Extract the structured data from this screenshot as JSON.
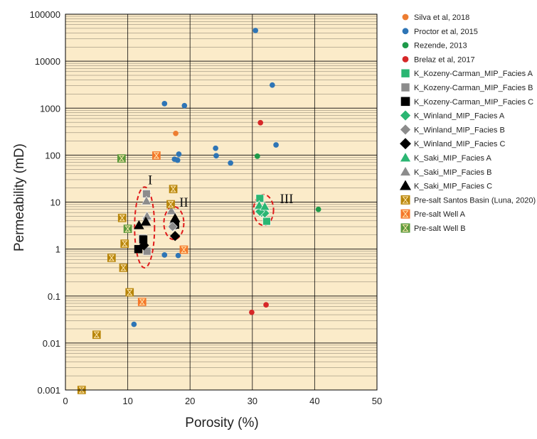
{
  "chart_data": {
    "type": "scatter",
    "xlabel": "Porosity (%)",
    "ylabel": "Permeability (mD)",
    "xlim": [
      0,
      50
    ],
    "ylim": [
      0.001,
      100000
    ],
    "y_scale": "log",
    "x_ticks": [
      "0",
      "10",
      "20",
      "30",
      "40",
      "50"
    ],
    "y_ticks": [
      "0.001",
      "0.01",
      "0.1",
      "1",
      "10",
      "100",
      "1000",
      "10000",
      "100000"
    ],
    "grid": true,
    "plot_background": "#FBEBC9",
    "legend_position": "right",
    "series": [
      {
        "name": "Silva et al, 2018",
        "marker": "circle",
        "color": "#ED7D31",
        "points": [
          [
            17.7,
            290
          ]
        ]
      },
      {
        "name": "Proctor et al, 2015",
        "marker": "circle",
        "color": "#2E75B6",
        "points": [
          [
            30.5,
            45000
          ],
          [
            33.2,
            3100
          ],
          [
            15.9,
            1250
          ],
          [
            19.1,
            1130
          ],
          [
            33.8,
            165
          ],
          [
            24.1,
            140
          ],
          [
            18.2,
            105
          ],
          [
            24.2,
            97
          ],
          [
            17.5,
            82
          ],
          [
            18.0,
            78
          ],
          [
            26.5,
            68
          ],
          [
            15.9,
            0.75
          ],
          [
            18.1,
            0.73
          ],
          [
            11.0,
            0.025
          ]
        ]
      },
      {
        "name": "Rezende, 2013",
        "marker": "circle",
        "color": "#1E9A4A",
        "points": [
          [
            30.8,
            95
          ],
          [
            40.6,
            7
          ]
        ]
      },
      {
        "name": "Brelaz et al, 2017",
        "marker": "circle",
        "color": "#D62728",
        "points": [
          [
            31.3,
            490
          ],
          [
            32.2,
            0.065
          ],
          [
            29.9,
            0.045
          ]
        ]
      },
      {
        "name": "K_Kozeny-Carman_MIP_Facies A",
        "marker": "square",
        "color": "#2BB673",
        "points": [
          [
            31.2,
            12
          ],
          [
            32.3,
            3.9
          ]
        ]
      },
      {
        "name": "K_Kozeny-Carman_MIP_Facies B",
        "marker": "square",
        "color": "#8C8C8C",
        "points": [
          [
            13.0,
            15
          ],
          [
            12.4,
            1.7
          ],
          [
            13.1,
            0.9
          ],
          [
            17.3,
            3.1
          ]
        ]
      },
      {
        "name": "K_Kozeny-Carman_MIP_Facies C",
        "marker": "square",
        "color": "#000000",
        "points": [
          [
            11.7,
            1.0
          ],
          [
            12.5,
            1.6
          ],
          [
            17.6,
            3.3
          ]
        ]
      },
      {
        "name": "K_Winland_MIP_Facies A",
        "marker": "diamond",
        "color": "#2BB673",
        "points": [
          [
            31.5,
            6.0
          ],
          [
            32.0,
            5.8
          ],
          [
            31.2,
            6.3
          ]
        ]
      },
      {
        "name": "K_Winland_MIP_Facies B",
        "marker": "diamond",
        "color": "#8C8C8C",
        "points": [
          [
            13.1,
            4.6
          ],
          [
            17.2,
            3.0
          ]
        ]
      },
      {
        "name": "K_Winland_MIP_Facies C",
        "marker": "diamond",
        "color": "#000000",
        "points": [
          [
            12.6,
            1.2
          ],
          [
            17.6,
            1.9
          ]
        ]
      },
      {
        "name": "K_Saki_MIP_Facies A",
        "marker": "triangle",
        "color": "#2BB673",
        "points": [
          [
            31.1,
            8.5
          ],
          [
            32.0,
            8.0
          ]
        ]
      },
      {
        "name": "K_Saki_MIP_Facies B",
        "marker": "triangle",
        "color": "#8C8C8C",
        "points": [
          [
            13.0,
            10.5
          ],
          [
            17.0,
            6.5
          ],
          [
            13.1,
            5.0
          ]
        ]
      },
      {
        "name": "K_Saki_MIP_Facies C",
        "marker": "triangle",
        "color": "#000000",
        "points": [
          [
            11.8,
            3.2
          ],
          [
            12.9,
            3.8
          ],
          [
            17.6,
            4.5
          ]
        ]
      },
      {
        "name": "Pre-salt Santos Basin (Luna, 2020)",
        "marker": "hourglass",
        "color": "#B8860B",
        "points": [
          [
            2.6,
            0.001
          ],
          [
            5.0,
            0.015
          ],
          [
            10.3,
            0.12
          ],
          [
            7.4,
            0.65
          ],
          [
            9.3,
            0.4
          ],
          [
            9.5,
            1.3
          ],
          [
            9.1,
            4.6
          ],
          [
            16.9,
            9.0
          ],
          [
            17.3,
            19.0
          ]
        ]
      },
      {
        "name": "Pre-salt Well A",
        "marker": "hourglass",
        "color": "#F5782A",
        "points": [
          [
            14.6,
            98
          ],
          [
            12.3,
            0.075
          ],
          [
            19.0,
            0.97
          ]
        ]
      },
      {
        "name": "Pre-salt Well B",
        "marker": "hourglass",
        "color": "#5B9A3C",
        "points": [
          [
            9.0,
            85
          ],
          [
            10.0,
            2.7
          ]
        ]
      }
    ],
    "annotations": [
      {
        "text": "I",
        "x": 13.6,
        "y": 24
      },
      {
        "text": "II",
        "x": 19.0,
        "y": 8.0
      },
      {
        "text": "III",
        "x": 35.5,
        "y": 9.5
      }
    ],
    "highlight_ellipses": [
      {
        "label": "I",
        "cx": 12.7,
        "cy": 2.1,
        "rx_data": 1.6,
        "y_low": 0.4,
        "y_high": 21
      },
      {
        "label": "II",
        "cx": 17.4,
        "cy": 3.3,
        "rx_data": 1.6,
        "y_low": 1.6,
        "y_high": 8.0
      },
      {
        "label": "III",
        "cx": 31.8,
        "cy": 7.0,
        "rx_data": 1.6,
        "y_low": 3.2,
        "y_high": 14.5
      }
    ],
    "colors": {
      "ellipse": "#E01B1B",
      "grid": "#000000"
    }
  }
}
